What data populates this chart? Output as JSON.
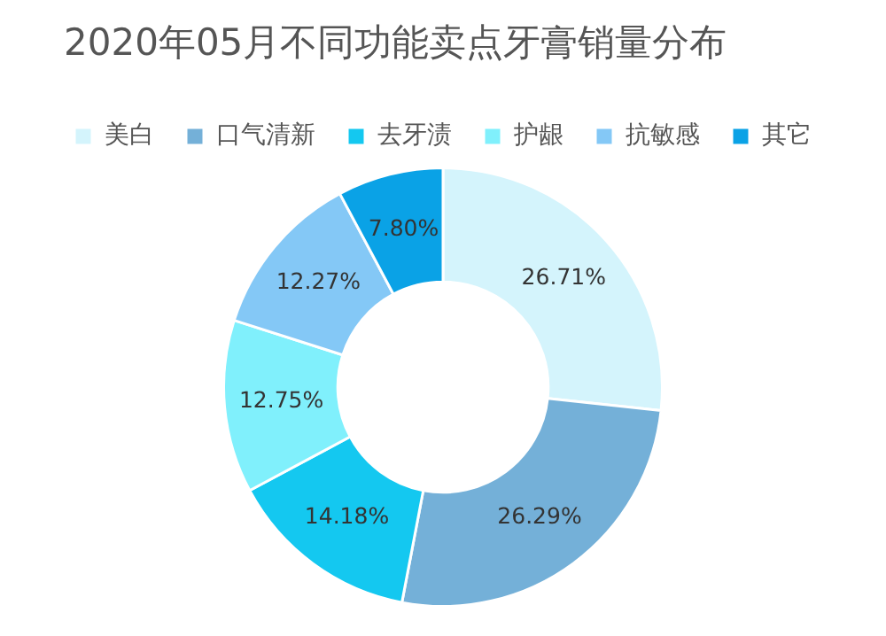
{
  "chart_data": {
    "type": "donut",
    "title": "2020年05月不同功能卖点牙膏销量分布",
    "categories": [
      "美白",
      "口气清新",
      "去牙渍",
      "护龈",
      "抗敏感",
      "其它"
    ],
    "values": [
      26.71,
      26.29,
      14.18,
      12.75,
      12.27,
      7.8
    ],
    "value_labels": [
      "26.71%",
      "26.29%",
      "14.18%",
      "12.75%",
      "12.27%",
      "7.80%"
    ],
    "colors": [
      "#d4f4fc",
      "#74b0d8",
      "#14c8f0",
      "#80f0fc",
      "#84c8f6",
      "#0aa2e6"
    ],
    "legend": "top"
  }
}
